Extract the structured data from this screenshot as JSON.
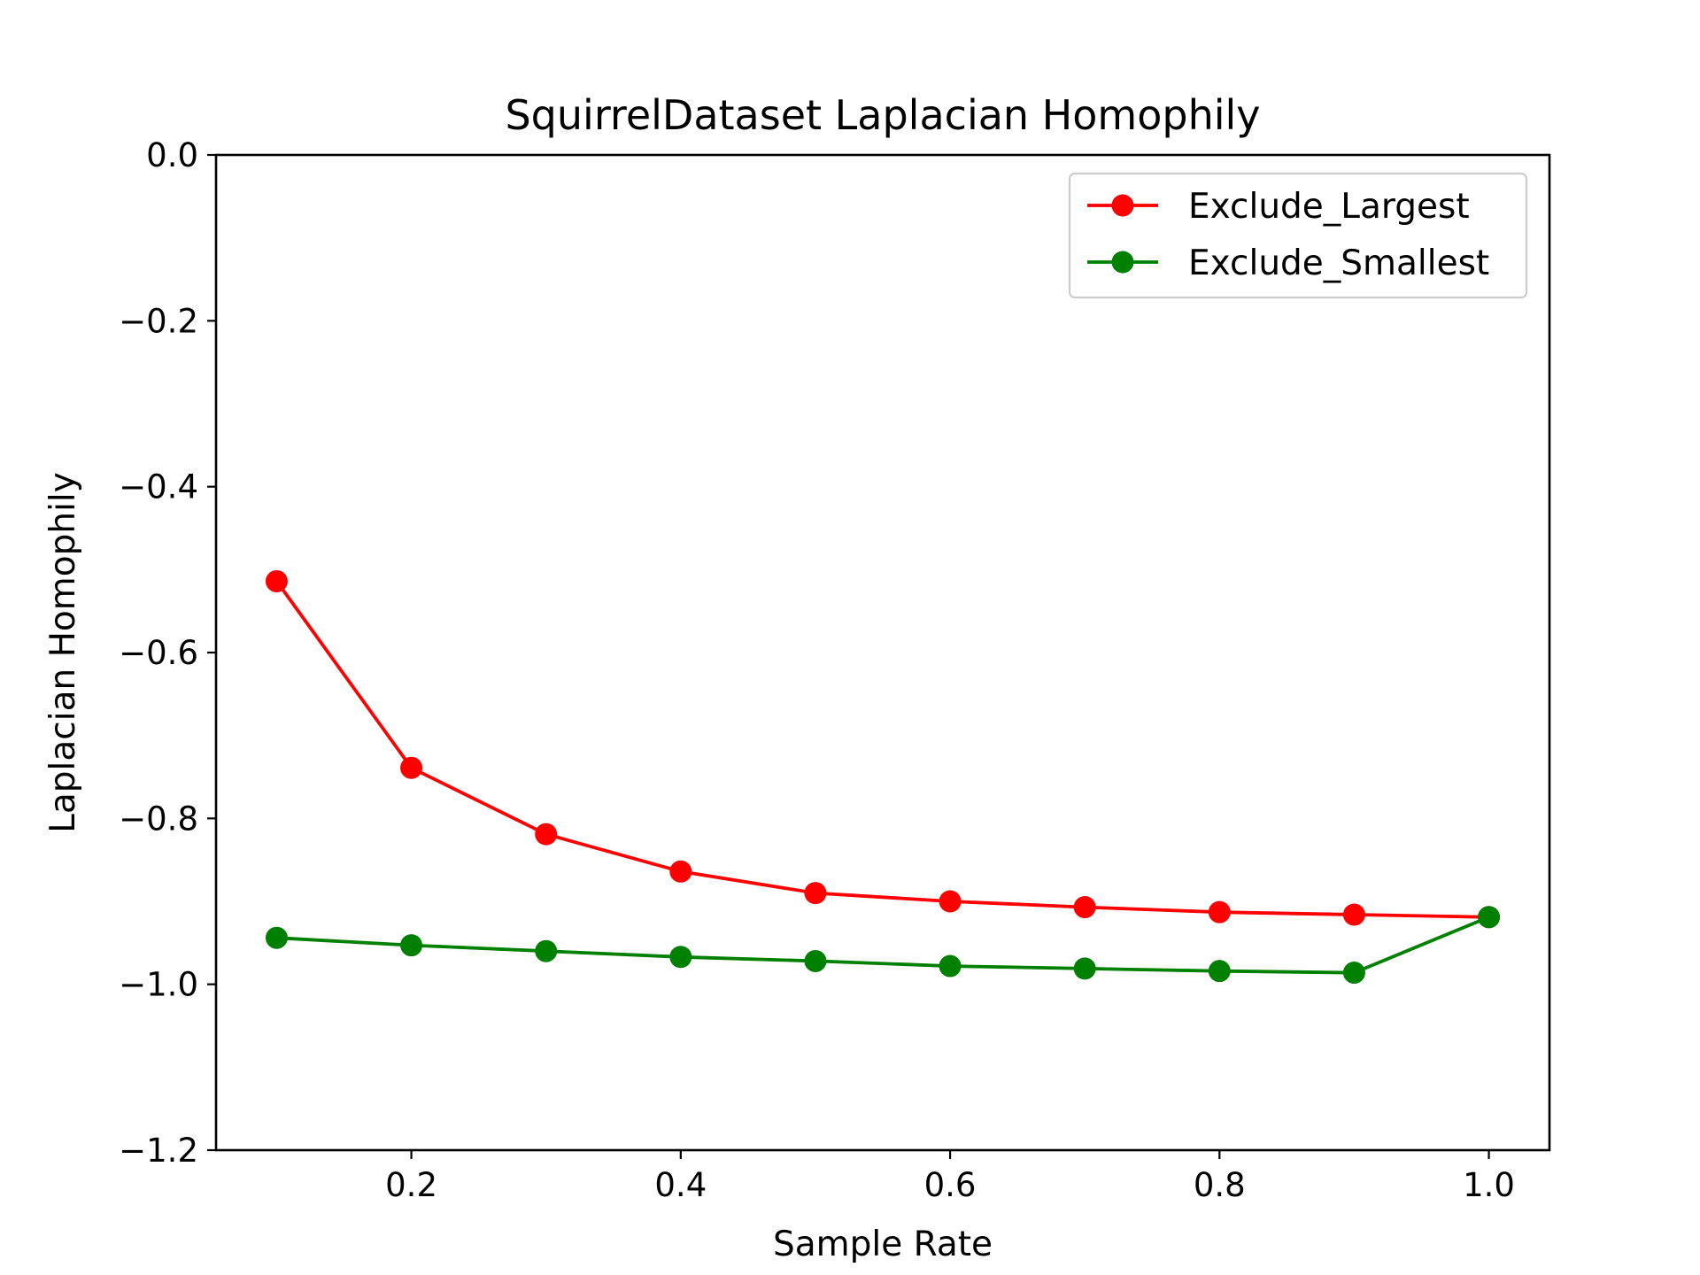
{
  "chart_data": {
    "type": "line",
    "title": "SquirrelDataset Laplacian Homophily",
    "xlabel": "Sample Rate",
    "ylabel": "Laplacian Homophily",
    "xlim": [
      0.055,
      1.045
    ],
    "ylim": [
      -1.2,
      0.0
    ],
    "x": [
      0.1,
      0.2,
      0.3,
      0.4,
      0.5,
      0.6,
      0.7,
      0.8,
      0.9,
      1.0
    ],
    "x_ticks": [
      0.2,
      0.4,
      0.6,
      0.8,
      1.0
    ],
    "x_tick_labels": [
      "0.2",
      "0.4",
      "0.6",
      "0.8",
      "1.0"
    ],
    "y_ticks": [
      0.0,
      -0.2,
      -0.4,
      -0.6,
      -0.8,
      -1.0,
      -1.2
    ],
    "y_tick_labels": [
      "0.0",
      "−0.2",
      "−0.4",
      "−0.6",
      "−0.8",
      "−1.0",
      "−1.2"
    ],
    "grid": false,
    "legend_position": "top-right",
    "series": [
      {
        "name": "Exclude_Largest",
        "color": "#ff0000",
        "marker": "circle",
        "values": [
          -0.514,
          -0.739,
          -0.819,
          -0.864,
          -0.89,
          -0.9,
          -0.907,
          -0.913,
          -0.916,
          -0.919
        ]
      },
      {
        "name": "Exclude_Smallest",
        "color": "#008000",
        "marker": "circle",
        "values": [
          -0.944,
          -0.953,
          -0.96,
          -0.967,
          -0.972,
          -0.978,
          -0.981,
          -0.984,
          -0.986,
          -0.919
        ]
      }
    ]
  }
}
